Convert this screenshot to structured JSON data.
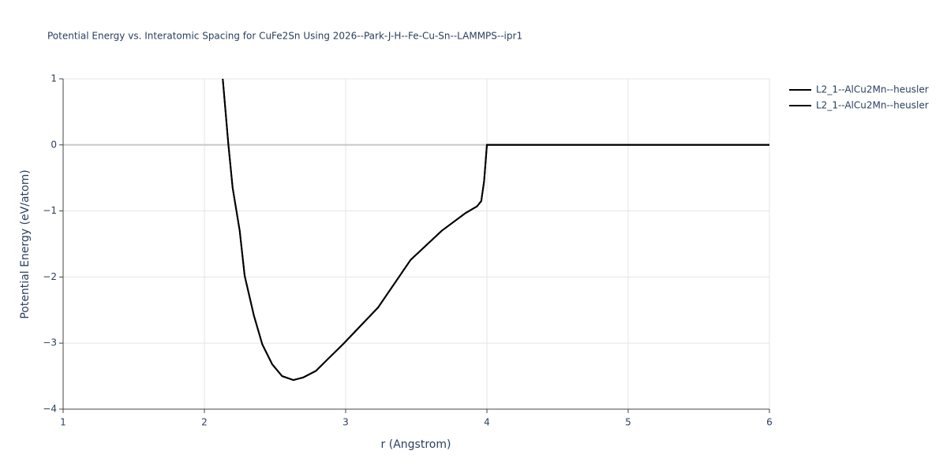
{
  "chart_data": {
    "type": "line",
    "title": "Potential Energy vs. Interatomic Spacing for CuFe2Sn Using 2026--Park-J-H--Fe-Cu-Sn--LAMMPS--ipr1",
    "x_label": "r (Angstrom)",
    "y_label": "Potential Energy (eV/atom)",
    "xlim": [
      1,
      6
    ],
    "ylim": [
      -4,
      1
    ],
    "xticks": [
      1,
      2,
      3,
      4,
      5,
      6
    ],
    "yticks": [
      {
        "value": -4,
        "label": "−4"
      },
      {
        "value": -3,
        "label": "−3"
      },
      {
        "value": -2,
        "label": "−2"
      },
      {
        "value": -1,
        "label": "−1"
      },
      0,
      1
    ],
    "grid": true,
    "legend": "top-right",
    "series": [
      {
        "name": "L2_1--AlCu2Mn--heusler",
        "color": "#000000",
        "x": [
          2.13,
          2.17,
          2.2,
          2.25,
          2.285,
          2.35,
          2.41,
          2.48,
          2.55,
          2.63,
          2.7,
          2.79,
          2.87,
          2.98,
          3.23,
          3.46,
          3.68,
          3.85,
          3.93,
          3.96,
          3.98,
          4.0,
          6.0
        ],
        "values": [
          1.0,
          0.0,
          -0.65,
          -1.3,
          -1.98,
          -2.58,
          -3.02,
          -3.32,
          -3.5,
          -3.56,
          -3.52,
          -3.42,
          -3.25,
          -3.02,
          -2.46,
          -1.74,
          -1.3,
          -1.03,
          -0.93,
          -0.85,
          -0.55,
          0.0,
          0.0
        ]
      },
      {
        "name": "L2_1--AlCu2Mn--heusler",
        "color": "#000000",
        "x": [
          2.13,
          2.17,
          2.2,
          2.25,
          2.285,
          2.35,
          2.41,
          2.48,
          2.55,
          2.63,
          2.7,
          2.79,
          2.87,
          2.98,
          3.23,
          3.46,
          3.68,
          3.85,
          3.93,
          3.96,
          3.98,
          4.0,
          6.0
        ],
        "values": [
          1.0,
          0.0,
          -0.65,
          -1.3,
          -1.98,
          -2.58,
          -3.02,
          -3.32,
          -3.5,
          -3.56,
          -3.52,
          -3.42,
          -3.25,
          -3.02,
          -2.46,
          -1.74,
          -1.3,
          -1.03,
          -0.93,
          -0.85,
          -0.55,
          0.0,
          0.0
        ]
      }
    ]
  }
}
